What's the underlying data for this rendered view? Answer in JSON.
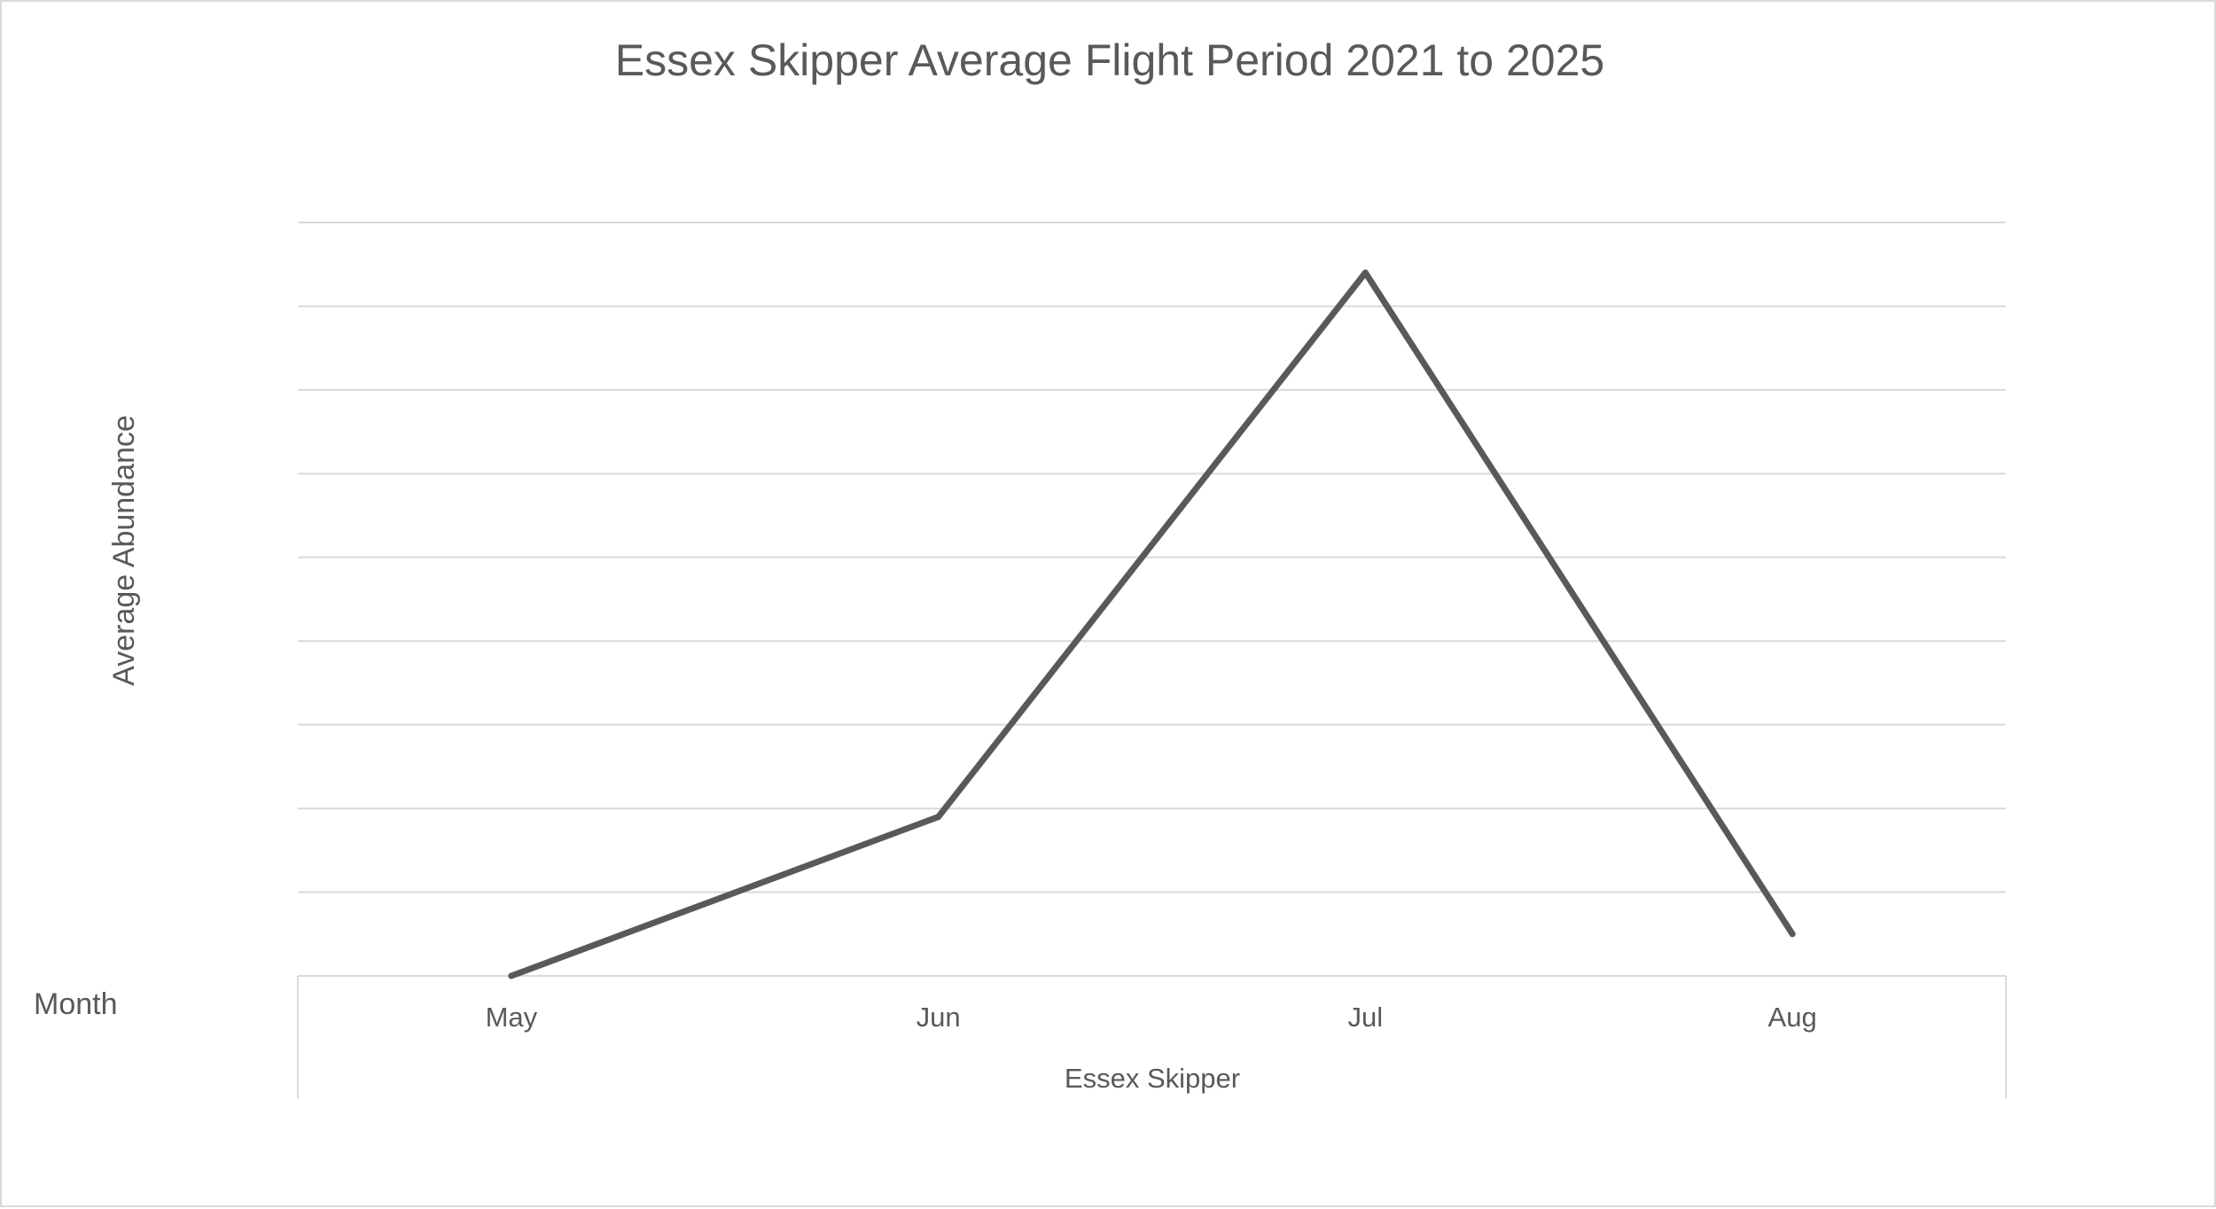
{
  "chart_data": {
    "type": "line",
    "title": "Essex Skipper Average Flight Period 2021 to 2025",
    "xlabel": "Month",
    "ylabel": "Average Abundance",
    "group_label": "Essex Skipper",
    "categories": [
      "May",
      "Jun",
      "Jul",
      "Aug"
    ],
    "series": [
      {
        "values": [
          0,
          1.9,
          8.4,
          0.5
        ]
      }
    ],
    "ylim": [
      0,
      9
    ],
    "grid": true,
    "y_tick_labels_visible": false,
    "legend": "none",
    "colors": {
      "series": "#595959",
      "grid": "#d9d9d9",
      "text": "#595959"
    }
  }
}
